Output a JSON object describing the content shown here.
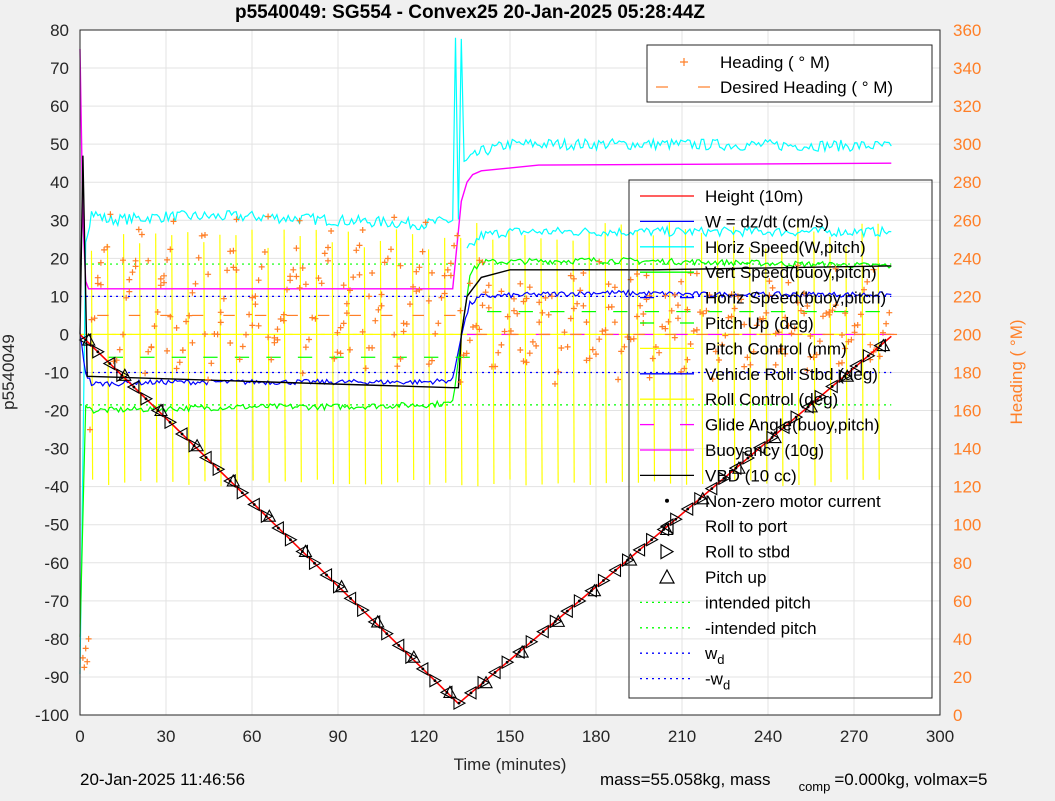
{
  "title": "p5540049: SG554 - Convex25 20-Jan-2025 05:28:44Z",
  "footer": {
    "left": "20-Jan-2025 11:46:56",
    "right_prefix": "mass=55.058kg, mass",
    "right_sub": "comp",
    "right_suffix": "=0.000kg, volmax=5"
  },
  "colors": {
    "height": "#ff0000",
    "w": "#0000ff",
    "horiz_speed": "#00ffff",
    "vert_speed": "#00ff00",
    "horiz_speed_buoy": "#0000ff",
    "pitch_up": "#00ff00",
    "pitch_control": "#ffff00",
    "vehicle_roll": "#0000ff",
    "roll_control": "#ffff00",
    "glide_angle": "#ff00ff",
    "buoyancy": "#ff00ff",
    "vbd": "#000000",
    "heading": "#ff7f27",
    "right_axis": "#ff7f27"
  },
  "chart_data": {
    "type": "line",
    "xlabel": "Time (minutes)",
    "ylabel_left": "p5540049",
    "ylabel_right": "Heading (  °M)",
    "xlim": [
      0,
      300
    ],
    "ylim_left": [
      -100,
      80
    ],
    "ylim_right": [
      0,
      360
    ],
    "x_ticks": [
      "0",
      "30",
      "60",
      "90",
      "120",
      "150",
      "180",
      "210",
      "240",
      "270",
      "300"
    ],
    "y_left_ticks": [
      "80",
      "70",
      "60",
      "50",
      "40",
      "30",
      "20",
      "10",
      "0",
      "-10",
      "-20",
      "-30",
      "-40",
      "-50",
      "-60",
      "-70",
      "-80",
      "-90",
      "-100"
    ],
    "y_right_ticks": [
      "360",
      "340",
      "320",
      "300",
      "280",
      "260",
      "240",
      "220",
      "200",
      "180",
      "160",
      "140",
      "120",
      "100",
      "80",
      "60",
      "40",
      "20",
      "0"
    ],
    "grid": true,
    "legend_top": {
      "placement": "top-right",
      "entries": [
        {
          "label": "Heading (   ° M)",
          "style": "plus"
        },
        {
          "label": "Desired Heading (    ° M)",
          "style": "dash"
        }
      ]
    },
    "legend_main": {
      "placement": "center-right",
      "entries": [
        {
          "label": "Height (10m)",
          "key": "height",
          "style": "line"
        },
        {
          "label": "W = dz/dt (cm/s)",
          "key": "w",
          "style": "line"
        },
        {
          "label": "Horiz Speed(W,pitch)",
          "key": "horiz_speed",
          "style": "line"
        },
        {
          "label": "Vert Speed(buoy,pitch)",
          "key": "vert_speed",
          "style": "line"
        },
        {
          "label": "Horiz Speed(buoy,pitch)",
          "key": "horiz_speed_buoy",
          "style": "dash"
        },
        {
          "label": "Pitch Up (deg)",
          "key": "pitch_up",
          "style": "dash"
        },
        {
          "label": "Pitch Control (mm)",
          "key": "pitch_control",
          "style": "line"
        },
        {
          "label": "Vehicle Roll Stbd (deg)",
          "key": "vehicle_roll",
          "style": "line"
        },
        {
          "label": "Roll Control (deg)",
          "key": "roll_control",
          "style": "line"
        },
        {
          "label": "Glide Angle(buoy,pitch)",
          "key": "glide_angle",
          "style": "dash"
        },
        {
          "label": "Buoyancy (10g)",
          "key": "buoyancy",
          "style": "line"
        },
        {
          "label": "VBD (10 cc)",
          "key": "vbd",
          "style": "line"
        },
        {
          "label": "Non-zero motor current",
          "key": "vbd",
          "style": "dot"
        },
        {
          "label": "Roll to port",
          "key": "vbd",
          "style": "tri-left"
        },
        {
          "label": "Roll to stbd",
          "key": "vbd",
          "style": "tri-right"
        },
        {
          "label": "Pitch up",
          "key": "vbd",
          "style": "tri-up"
        },
        {
          "label": "intended pitch",
          "key": "pitch_up",
          "style": "dotted"
        },
        {
          "label": "-intended pitch",
          "key": "pitch_up",
          "style": "dotted"
        },
        {
          "label": "w",
          "sub": "d",
          "key": "w",
          "style": "dotted"
        },
        {
          "label": "-w",
          "sub": "d",
          "key": "w",
          "style": "dotted"
        }
      ]
    },
    "series": {
      "height": {
        "x": [
          0,
          132,
          283
        ],
        "y": [
          0,
          -97,
          -0.5
        ]
      },
      "vbd": {
        "x": [
          0,
          1,
          2,
          2.5,
          130,
          132,
          133,
          135,
          140,
          150,
          200,
          283
        ],
        "y": [
          0,
          47,
          10,
          -11,
          -14,
          -14,
          0,
          10,
          15,
          17,
          17,
          18
        ]
      },
      "buoyancy": {
        "x": [
          0,
          1,
          2,
          3,
          130,
          133,
          135,
          137,
          140,
          160,
          283
        ],
        "y": [
          75,
          30,
          14,
          12,
          12,
          35,
          40,
          42,
          43,
          44.5,
          45
        ]
      },
      "horiz_speed": {
        "x": [
          0,
          2,
          4,
          10,
          30,
          60,
          90,
          120,
          130,
          131,
          132,
          133,
          134,
          140,
          150,
          200,
          283
        ],
        "y": [
          -90,
          25,
          32,
          30,
          31,
          31,
          30,
          29,
          30,
          78,
          30,
          77,
          45,
          48,
          50,
          50,
          49.5
        ]
      },
      "horiz_speed_2": {
        "x": [
          135,
          140,
          150,
          200,
          283
        ],
        "y": [
          22,
          26,
          27,
          27,
          27
        ]
      },
      "w_series": {
        "x": [
          0,
          2,
          4,
          30,
          60,
          90,
          120,
          130,
          133,
          136,
          140,
          180,
          220,
          283
        ],
        "y": [
          0,
          -10,
          -13,
          -12.5,
          -12.5,
          -12.5,
          -12.5,
          -12,
          0,
          8,
          10,
          11,
          10.5,
          10.5
        ]
      },
      "vert_speed": {
        "x": [
          0,
          2,
          4,
          30,
          60,
          90,
          120,
          130,
          133,
          136,
          140,
          180,
          220,
          283
        ],
        "y": [
          -80,
          -18,
          -20,
          -19.5,
          -19,
          -19,
          -18.5,
          -18,
          0,
          16,
          19,
          19.5,
          19,
          18
        ]
      },
      "heading_start": {
        "x": [
          1,
          1.5,
          2,
          2.5,
          3,
          3.5
        ],
        "y": [
          30,
          25,
          35,
          28,
          40,
          150
        ]
      },
      "w_d": 10,
      "intended_pitch": 18.5
    }
  }
}
